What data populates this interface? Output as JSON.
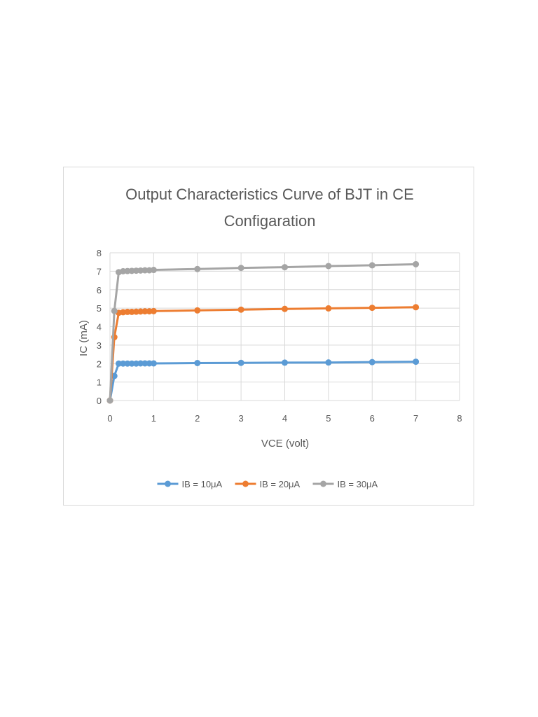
{
  "chart_data": {
    "type": "line",
    "title_lines": [
      "Output Characteristics Curve of BJT in CE",
      "Configaration"
    ],
    "xlabel": "VCE (volt)",
    "ylabel": "IC (mA)",
    "xlim": [
      0,
      8
    ],
    "ylim": [
      0,
      8
    ],
    "xticks": [
      "0",
      "1",
      "2",
      "3",
      "4",
      "5",
      "6",
      "7",
      "8"
    ],
    "yticks": [
      "0",
      "1",
      "2",
      "3",
      "4",
      "5",
      "6",
      "7",
      "8"
    ],
    "grid": true,
    "legend_position": "bottom",
    "x": [
      0,
      0.1,
      0.2,
      0.3,
      0.4,
      0.5,
      0.6,
      0.7,
      0.8,
      0.9,
      1,
      2,
      3,
      4,
      5,
      6,
      7
    ],
    "series": [
      {
        "name": "IB = 10μA",
        "color": "#5b9bd5",
        "values": [
          0,
          1.33,
          2.0,
          2.0,
          2.0,
          2.0,
          2.0,
          2.01,
          2.01,
          2.01,
          2.01,
          2.03,
          2.04,
          2.05,
          2.06,
          2.08,
          2.1
        ]
      },
      {
        "name": "IB = 20μA",
        "color": "#ed7d31",
        "values": [
          0,
          3.43,
          4.75,
          4.78,
          4.8,
          4.8,
          4.81,
          4.82,
          4.83,
          4.83,
          4.84,
          4.88,
          4.92,
          4.96,
          4.99,
          5.02,
          5.05
        ]
      },
      {
        "name": "IB = 30μA",
        "color": "#a5a5a5",
        "values": [
          0,
          4.85,
          6.95,
          7.0,
          7.01,
          7.02,
          7.03,
          7.04,
          7.05,
          7.05,
          7.07,
          7.12,
          7.18,
          7.22,
          7.28,
          7.32,
          7.38
        ]
      }
    ]
  }
}
